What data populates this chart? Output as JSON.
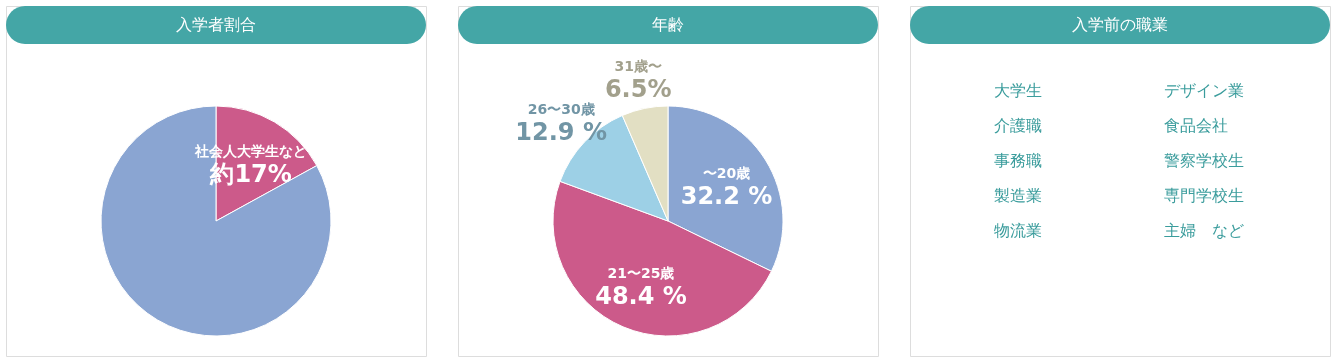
{
  "chart_data": [
    {
      "type": "pie",
      "title": "入学者割合",
      "categories": [
        "社会人大学生など",
        null
      ],
      "values": [
        17,
        83
      ],
      "colors": [
        "#cc5a8a",
        "#8aa5d2"
      ],
      "value_labels": [
        "約17%",
        null
      ]
    },
    {
      "type": "pie",
      "title": "年齢",
      "categories": [
        "〜20歳",
        "21〜25歳",
        "26〜30歳",
        "31歳〜"
      ],
      "values": [
        32.2,
        48.4,
        12.9,
        6.5
      ],
      "colors": [
        "#8aa5d2",
        "#cc5a8a",
        "#9dd0e6",
        "#e2dfc3"
      ],
      "value_labels": [
        "32.2 %",
        "48.4 %",
        "12.9 %",
        "6.5%"
      ]
    },
    {
      "type": "other",
      "title": "入学前の職業",
      "annotations": [
        "大学生",
        "介護職",
        "事務職",
        "製造業",
        "物流業",
        "デザイン業",
        "食品会社",
        "警察学校生",
        "専門学校生",
        "主婦　など"
      ]
    }
  ]
}
